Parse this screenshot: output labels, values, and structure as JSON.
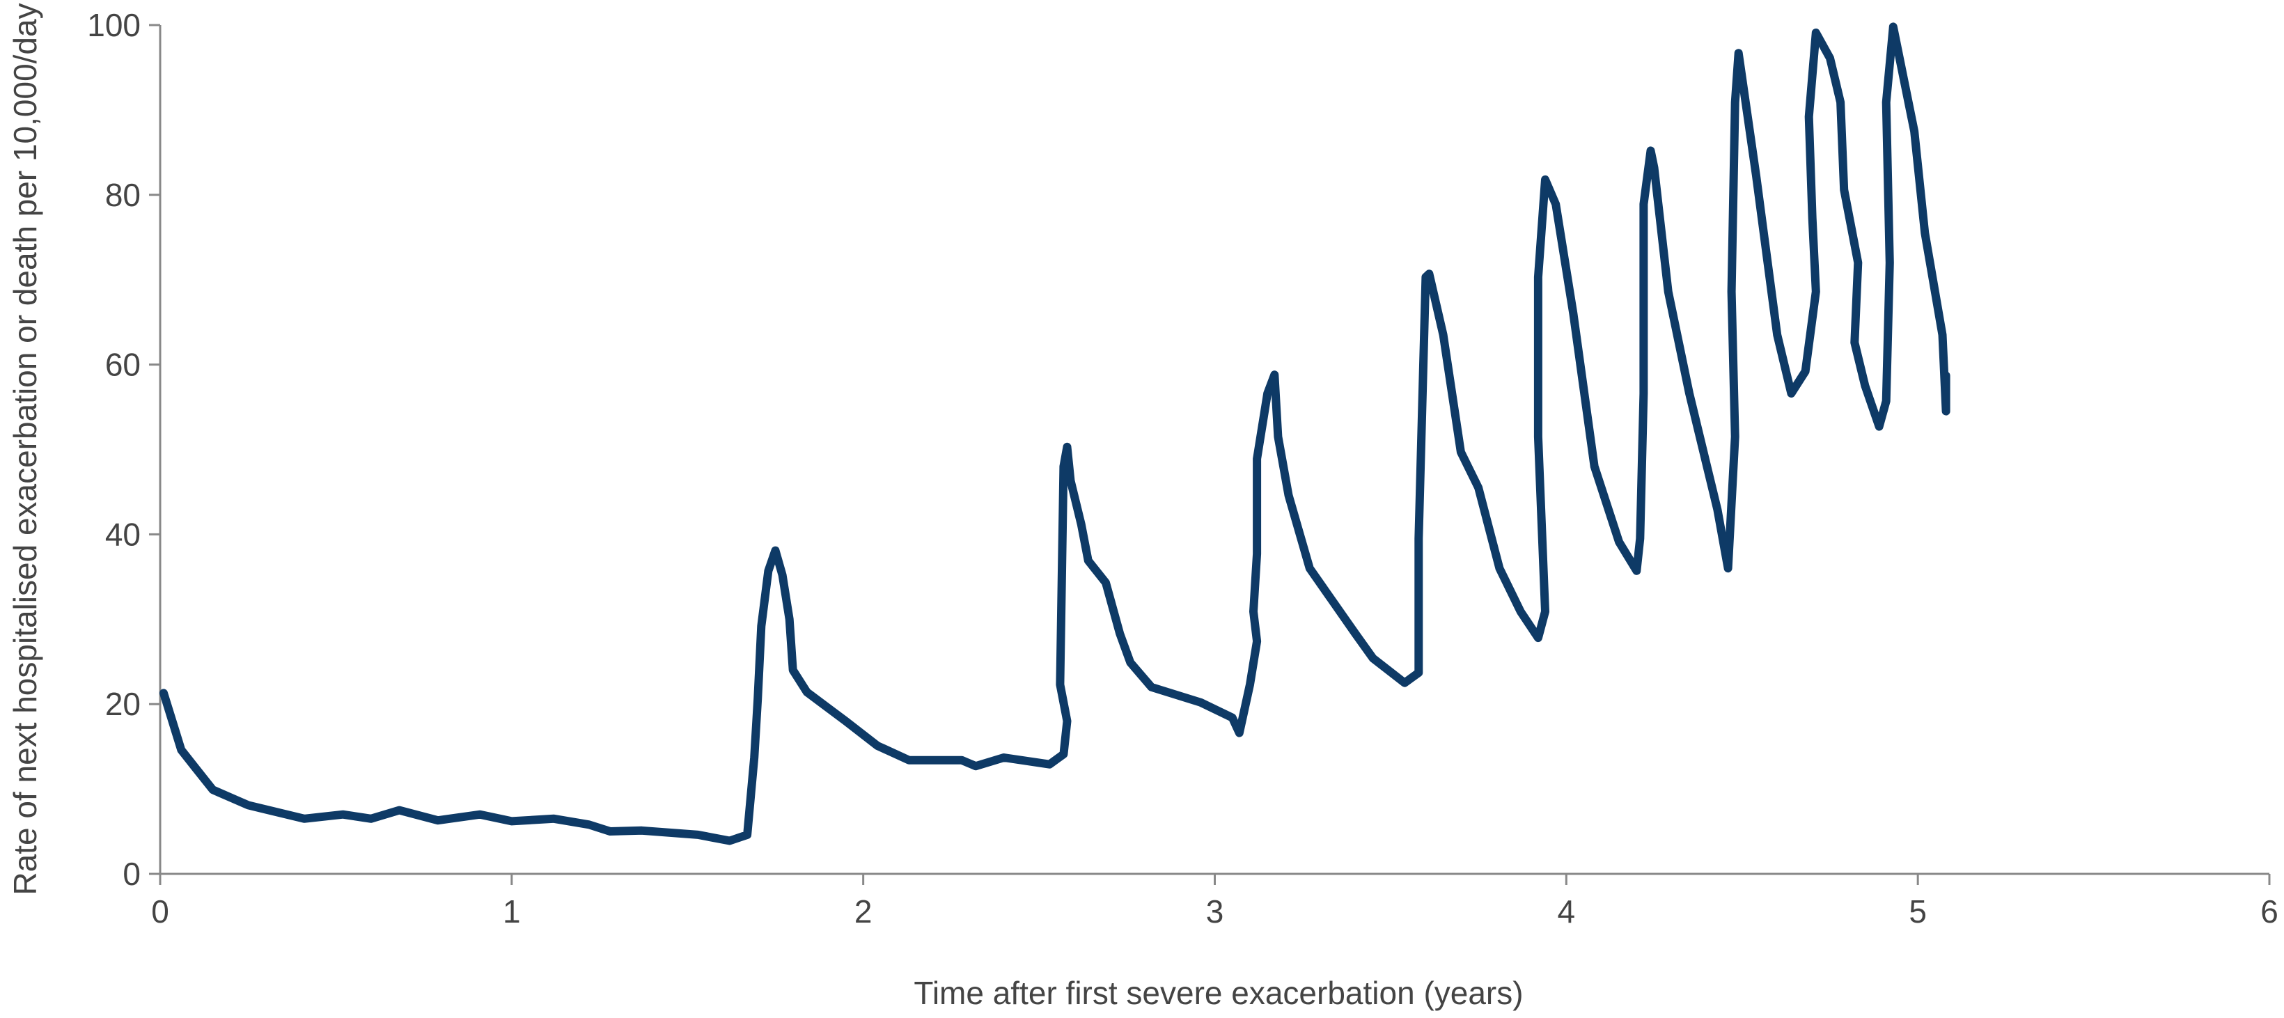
{
  "chart_data": {
    "type": "line",
    "xlabel": "Time after first severe exacerbation (years)",
    "ylabel": "Rate of next hospitalised exacerbation or death per 10,000/day",
    "xlim": [
      0,
      6
    ],
    "xticks": [
      0,
      1,
      2,
      3,
      4,
      5,
      6
    ],
    "ylim": [
      0,
      100
    ],
    "yticks": [
      0,
      20,
      40,
      60,
      80,
      100
    ],
    "series": [
      {
        "color": "#0e3a66",
        "x": [
          0.01,
          0.06,
          0.1,
          0.15,
          0.25,
          0.41,
          0.52,
          0.6,
          0.68,
          0.79,
          0.91,
          1.0,
          1.12,
          1.22,
          1.28,
          1.37,
          1.53,
          1.62,
          1.67,
          1.69,
          1.7,
          1.71,
          1.73,
          1.75,
          1.77,
          1.79,
          1.8,
          1.84,
          1.95,
          2.04,
          2.13,
          2.28,
          2.32,
          2.4,
          2.53,
          2.57,
          2.58,
          2.56,
          2.57,
          2.58,
          2.59,
          2.62,
          2.64,
          2.69,
          2.73,
          2.76,
          2.82,
          2.96,
          3.05,
          3.07,
          3.1,
          3.12,
          3.11,
          3.12,
          3.12,
          3.15,
          3.17,
          3.18,
          3.21,
          3.27,
          3.4,
          3.45,
          3.54,
          3.58,
          3.58,
          3.6,
          3.61,
          3.65,
          3.7,
          3.75,
          3.81,
          3.87,
          3.92,
          3.94,
          3.92,
          3.92,
          3.94,
          3.97,
          4.02,
          4.08,
          4.15,
          4.2,
          4.21,
          4.22,
          4.22,
          4.24,
          4.25,
          4.29,
          4.35,
          4.43,
          4.46,
          4.48,
          4.47,
          4.48,
          4.49,
          4.54,
          4.6,
          4.64,
          4.68,
          4.71,
          4.7,
          4.69,
          4.71,
          4.75,
          4.78,
          4.79,
          4.83,
          4.82,
          4.85,
          4.89,
          4.91,
          4.92,
          4.91,
          4.93,
          4.99,
          5.02,
          5.07,
          5.08,
          5.08
        ],
        "values": [
          21.3,
          14.6,
          12.5,
          9.9,
          8.1,
          6.5,
          7.0,
          6.5,
          7.5,
          6.3,
          7.0,
          6.2,
          6.5,
          5.8,
          5.0,
          5.1,
          4.6,
          3.9,
          4.6,
          13.7,
          20.6,
          29.2,
          35.7,
          38.1,
          35.2,
          30.0,
          24.0,
          21.4,
          18.0,
          15.1,
          13.4,
          13.4,
          12.7,
          13.7,
          12.9,
          14.1,
          18.0,
          22.3,
          48.0,
          50.3,
          46.3,
          41.2,
          36.9,
          34.3,
          28.3,
          24.9,
          22.0,
          20.2,
          18.4,
          16.6,
          22.3,
          27.4,
          30.9,
          37.7,
          48.9,
          56.6,
          58.8,
          51.5,
          44.6,
          36.0,
          28.3,
          25.4,
          22.5,
          23.7,
          39.5,
          70.3,
          70.7,
          63.5,
          49.7,
          45.5,
          36.0,
          30.9,
          27.8,
          30.9,
          51.5,
          70.3,
          81.8,
          78.9,
          66.0,
          48.0,
          39.1,
          35.7,
          39.5,
          56.6,
          78.9,
          85.2,
          83.2,
          68.6,
          56.6,
          42.9,
          36.0,
          51.5,
          68.6,
          90.9,
          96.7,
          82.3,
          63.5,
          56.6,
          59.2,
          68.6,
          77.2,
          89.2,
          99.1,
          96.1,
          90.9,
          80.6,
          72.0,
          62.6,
          57.5,
          52.7,
          55.7,
          72.0,
          90.9,
          99.8,
          87.5,
          75.5,
          63.5,
          54.5,
          58.7
        ]
      }
    ]
  }
}
